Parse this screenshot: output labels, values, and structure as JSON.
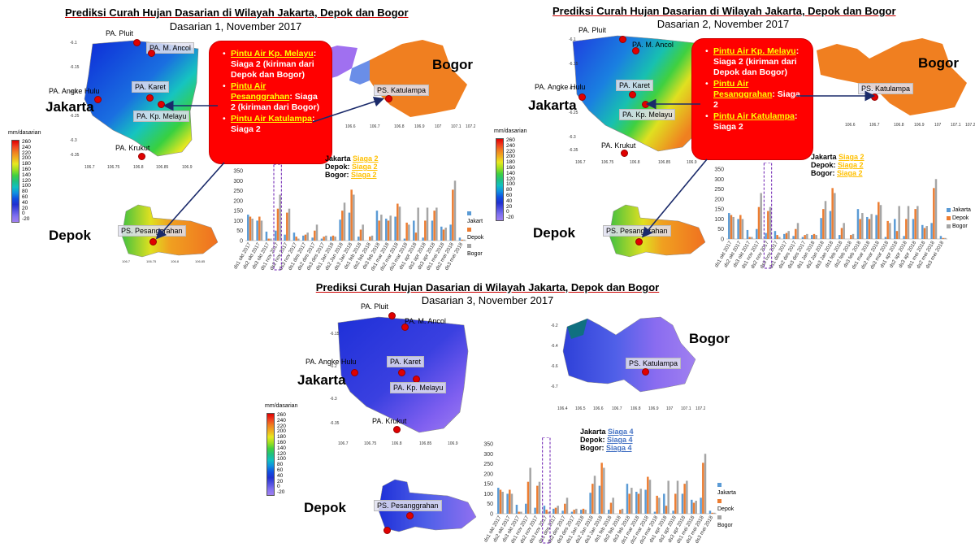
{
  "colors": {
    "jakarta": "#5b9bd5",
    "depok": "#ed7d31",
    "bogor": "#a5a5a5",
    "alert_bg": "#ff0000",
    "station_dot": "#e00000",
    "siaga2": "#ffc000",
    "siaga4": "#4472c4"
  },
  "legend": {
    "title": "mm/dasarian",
    "ticks": [
      "260",
      "240",
      "220",
      "200",
      "180",
      "160",
      "140",
      "120",
      "100",
      "80",
      "60",
      "40",
      "20",
      "0",
      "-20"
    ]
  },
  "regions": {
    "jakarta": "Jakarta",
    "depok": "Depok",
    "bogor": "Bogor"
  },
  "stations": {
    "pluit": "PA. Pluit",
    "ancol": "PA. M. Ancol",
    "angke": "PA. Angke Hulu",
    "karet": "PA. Karet",
    "melayu": "PA. Kp. Melayu",
    "krukut": "PA. Krukut",
    "katulampa": "PS. Katulampa",
    "pesanggrahan": "PS. Pesanggrahan"
  },
  "panels": [
    {
      "title": "Prediksi Curah Hujan Dasarian di Wilayah Jakarta, Depok dan Bogor",
      "subtitle": "Dasarian 1, November 2017",
      "alert": [
        {
          "loc": "Pintu Air Kp. Melayu",
          "level": "Siaga 2",
          "rest": "(kiriman dari Depok dan Bogor)"
        },
        {
          "loc": "Pintu Air Pesanggrahan",
          "level": "Siaga 2",
          "rest": "(kiriman dari Bogor)"
        },
        {
          "loc": "Pintu Air Katulampa",
          "level": "Siaga 2",
          "rest": ""
        }
      ],
      "status": [
        {
          "region": "Jakarta",
          "level": "Siaga 2"
        },
        {
          "region": "Depok:",
          "level": "Siaga 2"
        },
        {
          "region": "Bogor:",
          "level": "Siaga 2"
        }
      ],
      "legend_series": [
        "Jakart",
        "Depok",
        "Bogor"
      ],
      "highlight_index": 3
    },
    {
      "title": "Prediksi Curah Hujan Dasarian di Wilayah Jakarta, Depok dan Bogor",
      "subtitle": "Dasarian 2, November 2017",
      "alert": [
        {
          "loc": "Pintu Air Kp. Melayu",
          "level": "Siaga 2",
          "rest": "(kiriman dari Depok dan Bogor)"
        },
        {
          "loc": "Pintu Air Pesanggrahan",
          "level": "Siaga 2",
          "rest": ""
        },
        {
          "loc": "Pintu Air Katulampa",
          "level": "Siaga 2",
          "rest": ""
        }
      ],
      "status": [
        {
          "region": "Jakarta",
          "level": "Siaga 2"
        },
        {
          "region": "Depok:",
          "level": "Siaga 2"
        },
        {
          "region": "Bogor:",
          "level": "Siaga 2"
        }
      ],
      "legend_series": [
        "Jakarta",
        "Depok",
        "Bogor"
      ],
      "highlight_index": 4
    },
    {
      "title": "Prediksi Curah Hujan Dasarian di Wilayah Jakarta, Depok dan Bogor",
      "subtitle": "Dasarian 3, November 2017",
      "status": [
        {
          "region": "Jakarta",
          "level": "Siaga 4"
        },
        {
          "region": "Depok:",
          "level": "Siaga 4"
        },
        {
          "region": "Bogor:",
          "level": "Siaga 4"
        }
      ],
      "legend_series": [
        "Jakarta",
        "Depok",
        "Bogor"
      ],
      "highlight_index": 5
    }
  ],
  "chart_data": {
    "type": "bar",
    "ylim": [
      0,
      350
    ],
    "yticks": [
      0,
      50,
      100,
      150,
      200,
      250,
      300,
      350
    ],
    "categories": [
      "ds1 okt 2017",
      "ds2 okt 2017",
      "ds3 okt 2017",
      "ds1 nov 2017",
      "ds2 nov 2017",
      "ds3 nov 2017",
      "ds1 des 2017",
      "ds2 des 2017",
      "ds3 des 2017",
      "ds1 Jan 2018",
      "ds2 Jan 2018",
      "ds3 Jan 2018",
      "ds1 feb 2018",
      "ds2 feb 2018",
      "ds3 feb 2018",
      "ds1 mar 2018",
      "ds2 mar 2018",
      "ds3 mar 2018",
      "ds1 apr 2018",
      "ds2 apr 2018",
      "ds3 apr 2018",
      "ds1 mei 2018",
      "ds2 mei 2018",
      "ds3 mei 2018"
    ],
    "series": [
      {
        "name": "Jakarta",
        "values": [
          130,
          100,
          45,
          50,
          30,
          40,
          25,
          15,
          10,
          20,
          105,
          140,
          20,
          0,
          150,
          110,
          120,
          10,
          100,
          15,
          100,
          70,
          80,
          15
        ]
      },
      {
        "name": "Depok",
        "values": [
          120,
          120,
          10,
          160,
          140,
          20,
          30,
          50,
          20,
          25,
          150,
          255,
          55,
          20,
          100,
          100,
          185,
          90,
          40,
          100,
          150,
          55,
          255,
          5
        ]
      },
      {
        "name": "Bogor",
        "values": [
          110,
          100,
          10,
          230,
          160,
          10,
          40,
          80,
          25,
          20,
          190,
          230,
          80,
          25,
          130,
          125,
          170,
          80,
          165,
          165,
          165,
          65,
          300,
          5
        ]
      }
    ]
  }
}
